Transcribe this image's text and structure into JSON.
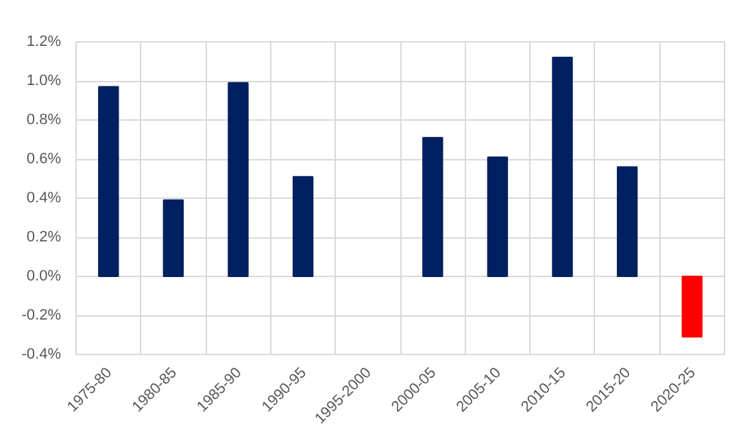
{
  "chart_data": {
    "type": "bar",
    "categories": [
      "1975-80",
      "1980-85",
      "1985-90",
      "1990-95",
      "1995-2000",
      "2000-05",
      "2005-10",
      "2010-15",
      "2015-20",
      "2020-25"
    ],
    "values": [
      0.97,
      0.39,
      0.99,
      0.51,
      null,
      0.71,
      0.61,
      1.12,
      0.56,
      -0.31
    ],
    "colors": [
      "#002060",
      "#002060",
      "#002060",
      "#002060",
      "#002060",
      "#002060",
      "#002060",
      "#002060",
      "#002060",
      "#ff0000"
    ],
    "ylim": [
      -0.4,
      1.2
    ],
    "yticks": [
      {
        "value": -0.4,
        "label": "-0.4%"
      },
      {
        "value": -0.2,
        "label": "-0.2%"
      },
      {
        "value": 0,
        "label": "0.0%"
      },
      {
        "value": 0.2,
        "label": "0.2%"
      },
      {
        "value": 0.4,
        "label": "0.4%"
      },
      {
        "value": 0.6,
        "label": "0.6%"
      },
      {
        "value": 0.8,
        "label": "0.8%"
      },
      {
        "value": 1.0,
        "label": "1.0%"
      },
      {
        "value": 1.2,
        "label": "1.2%"
      }
    ],
    "grid": true
  }
}
